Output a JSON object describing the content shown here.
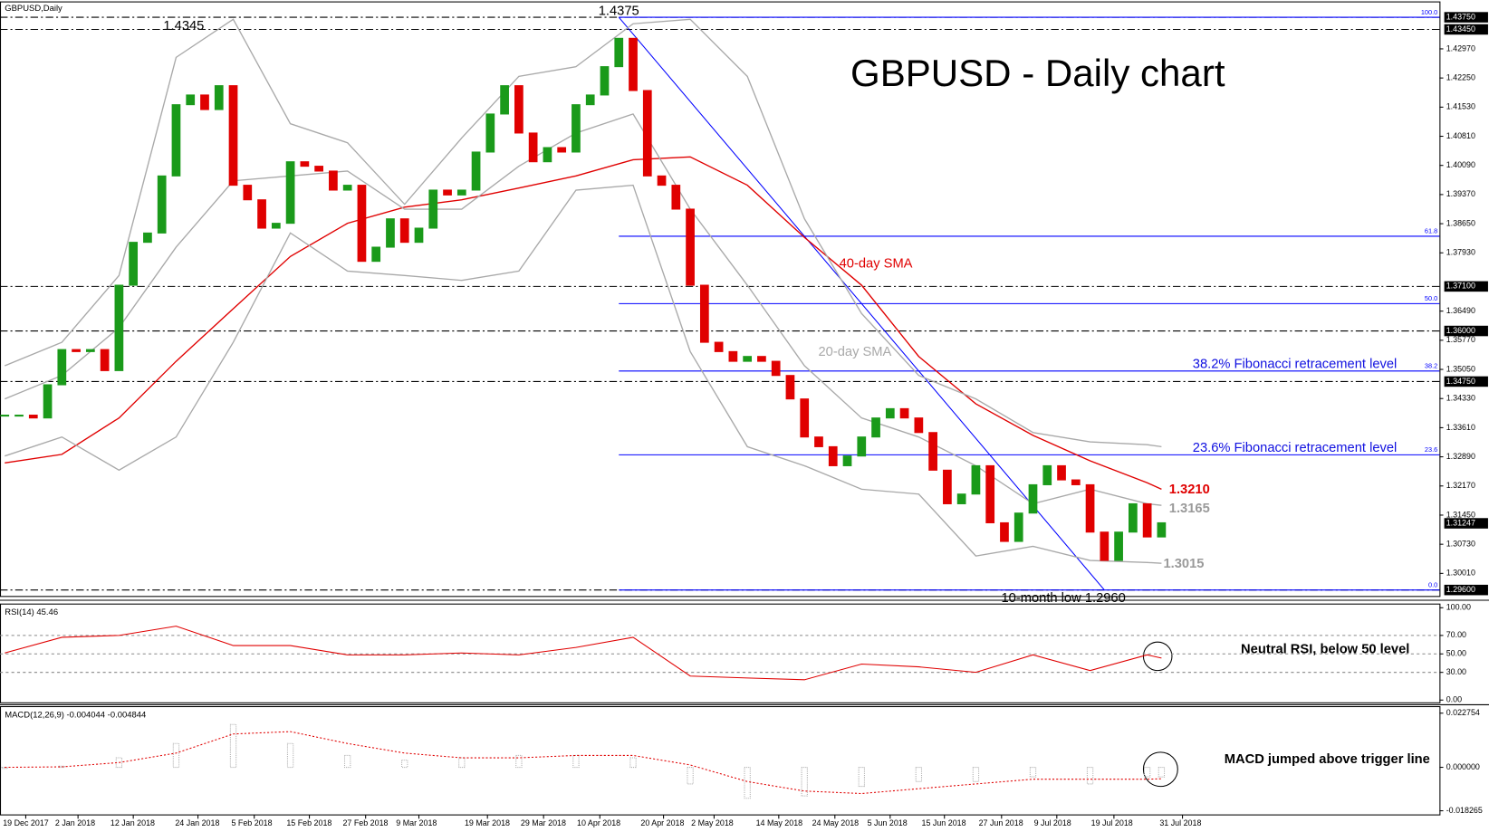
{
  "chart_data": [
    {
      "type": "candlestick",
      "label": "GBPUSD,Daily",
      "title": "GBPUSD - Daily chart",
      "color_up": "#1a9a1a",
      "color_down": "#e00000",
      "xlim": [
        -0.333,
        100.467
      ],
      "xticks": [
        {
          "value": 1.47,
          "label": "19 Dec 2017"
        },
        {
          "value": 5.13,
          "label": "2 Jan 2018"
        },
        {
          "value": 9,
          "label": "12 Jan 2018"
        },
        {
          "value": 13.53,
          "label": "24 Jan 2018"
        },
        {
          "value": 17.47,
          "label": "5 Feb 2018"
        },
        {
          "value": 21.33,
          "label": "15 Feb 2018"
        },
        {
          "value": 25.27,
          "label": "27 Feb 2018"
        },
        {
          "value": 29,
          "label": "9 Mar 2018"
        },
        {
          "value": 33.8,
          "label": "19 Mar 2018"
        },
        {
          "value": 37.73,
          "label": "29 Mar 2018"
        },
        {
          "value": 41.67,
          "label": "10 Apr 2018"
        },
        {
          "value": 46.13,
          "label": "20 Apr 2018"
        },
        {
          "value": 49.67,
          "label": "2 May 2018"
        },
        {
          "value": 54.2,
          "label": "14 May 2018"
        },
        {
          "value": 58.13,
          "label": "24 May 2018"
        },
        {
          "value": 62,
          "label": "5 Jun 2018"
        },
        {
          "value": 65.8,
          "label": "15 Jun 2018"
        },
        {
          "value": 69.8,
          "label": "27 Jun 2018"
        },
        {
          "value": 73.67,
          "label": "9 Jul 2018"
        },
        {
          "value": 77.67,
          "label": "19 Jul 2018"
        },
        {
          "value": 82.47,
          "label": "31 Jul 2018"
        }
      ],
      "ylim": [
        1.2944,
        1.4413
      ],
      "yticks": [
        {
          "value": 1.4297,
          "label": "1.42970"
        },
        {
          "value": 1.4225,
          "label": "1.42250"
        },
        {
          "value": 1.4153,
          "label": "1.41530"
        },
        {
          "value": 1.4081,
          "label": "1.40810"
        },
        {
          "value": 1.4009,
          "label": "1.40090"
        },
        {
          "value": 1.3937,
          "label": "1.39370"
        },
        {
          "value": 1.3865,
          "label": "1.38650"
        },
        {
          "value": 1.3793,
          "label": "1.37930"
        },
        {
          "value": 1.3649,
          "label": "1.36490"
        },
        {
          "value": 1.3577,
          "label": "1.35770"
        },
        {
          "value": 1.3505,
          "label": "1.35050"
        },
        {
          "value": 1.3433,
          "label": "1.34330"
        },
        {
          "value": 1.3361,
          "label": "1.33610"
        },
        {
          "value": 1.3289,
          "label": "1.32890"
        },
        {
          "value": 1.3217,
          "label": "1.32170"
        },
        {
          "value": 1.3145,
          "label": "1.31450"
        },
        {
          "value": 1.3073,
          "label": "1.30730"
        },
        {
          "value": 1.3001,
          "label": "1.30010"
        }
      ],
      "levels": [
        {
          "value": 1.4375,
          "label": "1.43750"
        },
        {
          "value": 1.4345,
          "label": "1.43450"
        },
        {
          "value": 1.371,
          "label": "1.37100"
        },
        {
          "value": 1.36,
          "label": "1.36000"
        },
        {
          "value": 1.3475,
          "label": "1.34750"
        },
        {
          "value": 1.296,
          "label": "1.29600"
        }
      ],
      "last_price": {
        "value": 1.31247,
        "label": "1.31247"
      },
      "values": [
        1.3392,
        1.3392,
        1.3385,
        1.3467,
        1.3554,
        1.3549,
        1.3554,
        1.3502,
        1.3713,
        1.3819,
        1.3842,
        1.3983,
        1.4159,
        1.4183,
        1.4147,
        1.4206,
        1.396,
        1.3924,
        1.3854,
        1.3866,
        1.4018,
        1.4007,
        1.3995,
        1.3948,
        1.396,
        1.3772,
        1.3807,
        1.3877,
        1.3819,
        1.3854,
        1.3948,
        1.3936,
        1.3948,
        1.4042,
        1.4136,
        1.4206,
        1.4089,
        1.4018,
        1.4053,
        1.4042,
        1.4159,
        1.4183,
        1.4253,
        1.4323,
        1.4194,
        1.3983,
        1.396,
        1.3901,
        1.3713,
        1.3572,
        1.3549,
        1.3525,
        1.3537,
        1.3525,
        1.349,
        1.3432,
        1.3338,
        1.3314,
        1.3267,
        1.3291,
        1.3338,
        1.3385,
        1.3408,
        1.3385,
        1.3349,
        1.3256,
        1.3173,
        1.3197,
        1.3267,
        1.3126,
        1.308,
        1.315,
        1.322,
        1.3267,
        1.3232,
        1.322,
        1.3103,
        1.3033,
        1.3103,
        1.3173,
        1.3091,
        1.3126
      ],
      "series": [
        {
          "name": "40-day SMA",
          "color": "#e00000",
          "x": [
            0,
            4,
            8,
            12,
            16,
            20,
            24,
            28,
            32,
            36,
            40,
            44,
            48,
            52,
            56,
            60,
            64,
            68,
            72,
            76,
            80,
            81
          ],
          "values": [
            1.3274,
            1.3295,
            1.3385,
            1.3525,
            1.3655,
            1.3784,
            1.3866,
            1.3906,
            1.3924,
            1.3953,
            1.3983,
            1.4023,
            1.403,
            1.396,
            1.3831,
            1.3713,
            1.3537,
            1.342,
            1.3342,
            1.3279,
            1.3225,
            1.3209
          ]
        },
        {
          "name": "20-day SMA",
          "color": "#a9a9a9",
          "x": [
            0,
            4,
            8,
            12,
            16,
            20,
            24,
            28,
            32,
            36,
            40,
            44,
            48,
            52,
            56,
            60,
            64,
            68,
            72,
            76,
            80,
            81
          ],
          "values": [
            1.3432,
            1.349,
            1.3608,
            1.3807,
            1.3971,
            1.3983,
            1.3995,
            1.3901,
            1.3901,
            1.4007,
            1.4089,
            1.4136,
            1.3901,
            1.3713,
            1.3514,
            1.3385,
            1.3338,
            1.3267,
            1.3173,
            1.3209,
            1.3173,
            1.3169
          ]
        },
        {
          "color": "#a9a9a9",
          "x": [
            0,
            4,
            8,
            12,
            16,
            20,
            24,
            28,
            32,
            36,
            40,
            44,
            48,
            52,
            56,
            60,
            64,
            68,
            72,
            76,
            80,
            81
          ],
          "values": [
            1.3514,
            1.3572,
            1.3737,
            1.4276,
            1.437,
            1.4112,
            1.4065,
            1.3913,
            1.4077,
            1.4229,
            1.4253,
            1.4359,
            1.437,
            1.4229,
            1.3877,
            1.3643,
            1.349,
            1.3432,
            1.3349,
            1.3326,
            1.3319,
            1.3314
          ]
        },
        {
          "color": "#a9a9a9",
          "x": [
            0,
            4,
            8,
            12,
            16,
            20,
            24,
            28,
            32,
            36,
            40,
            44,
            48,
            52,
            56,
            60,
            64,
            68,
            72,
            76,
            80,
            81
          ],
          "values": [
            1.3291,
            1.3338,
            1.3256,
            1.3338,
            1.3572,
            1.3842,
            1.3748,
            1.3737,
            1.3725,
            1.3748,
            1.3948,
            1.396,
            1.3549,
            1.3314,
            1.3267,
            1.3209,
            1.3197,
            1.3044,
            1.3068,
            1.3033,
            1.3028,
            1.3026
          ]
        }
      ],
      "fibonacci": {
        "color": "#0000ff",
        "start": 43,
        "levels": [
          {
            "value": 1.4375,
            "label": "100.0"
          },
          {
            "value": 1.3834,
            "label": "61.8"
          },
          {
            "value": 1.36675,
            "label": "50.0"
          },
          {
            "value": 1.3501,
            "label": "38.2"
          },
          {
            "value": 1.3294,
            "label": "23.6"
          },
          {
            "value": 1.296,
            "label": "0.0"
          }
        ]
      },
      "trendline": {
        "x": [
          43,
          77
        ],
        "values": [
          1.4375,
          1.296
        ]
      },
      "annotations": [
        "1.4345",
        "1.4375",
        "38.2% Fibonacci retracement level",
        "23.6% Fibonacci retracement level",
        "1.3210",
        "1.3165",
        "1.3015",
        "10-month low 1.2960"
      ]
    },
    {
      "type": "line",
      "title": "RSI(14) 45.46",
      "ylim": [
        -3,
        104
      ],
      "yticks": [
        {
          "value": 100,
          "label": "100.00"
        },
        {
          "value": 70,
          "label": "70.00"
        },
        {
          "value": 50,
          "label": "50.00"
        },
        {
          "value": 30,
          "label": "30.00"
        },
        {
          "value": 0,
          "label": "0.00"
        }
      ],
      "levels": [
        70,
        50,
        30
      ],
      "series": [
        {
          "color": "#e00000",
          "x": [
            0,
            4,
            8,
            12,
            16,
            20,
            24,
            28,
            32,
            36,
            40,
            44,
            48,
            52,
            56,
            60,
            64,
            68,
            72,
            76,
            80,
            81
          ],
          "values": [
            51,
            68,
            70,
            80,
            59,
            59,
            49,
            49,
            51,
            49,
            57,
            68,
            26,
            24,
            22,
            39,
            36,
            30,
            49,
            32,
            49,
            45.46
          ]
        }
      ],
      "annotation": "Neutral RSI, below 50 level"
    },
    {
      "type": "combo",
      "title": "MACD(12,26,9) -0.004044 -0.004844",
      "ylim": [
        -0.02,
        0.0255
      ],
      "yticks": [
        0.022754,
        {
          "value": 0,
          "label": "0.000000"
        },
        -0.018265
      ],
      "series": [
        {
          "kind": "bar",
          "color": "#b0b0b0",
          "x": [
            0,
            4,
            8,
            12,
            16,
            20,
            24,
            28,
            32,
            36,
            40,
            44,
            48,
            52,
            56,
            60,
            64,
            68,
            72,
            76,
            80,
            81
          ],
          "values": [
            -0.0005,
            0.0005,
            0.004,
            0.01,
            0.018,
            0.01,
            0.005,
            0.003,
            0.004,
            0.005,
            0.005,
            0.004,
            -0.007,
            -0.013,
            -0.012,
            -0.008,
            -0.006,
            -0.006,
            -0.004,
            -0.007,
            -0.004,
            -0.004044
          ]
        },
        {
          "kind": "line",
          "color": "#e00000",
          "x": [
            0,
            4,
            8,
            12,
            16,
            20,
            24,
            28,
            32,
            36,
            40,
            44,
            48,
            52,
            56,
            60,
            64,
            68,
            72,
            76,
            80,
            81
          ],
          "values": [
            0,
            0.0002,
            0.002,
            0.006,
            0.014,
            0.015,
            0.01,
            0.006,
            0.004,
            0.004,
            0.005,
            0.005,
            0.001,
            -0.006,
            -0.01,
            -0.011,
            -0.009,
            -0.007,
            -0.005,
            -0.005,
            -0.005,
            -0.004844
          ]
        }
      ],
      "annotation": "MACD jumped above trigger line"
    }
  ]
}
